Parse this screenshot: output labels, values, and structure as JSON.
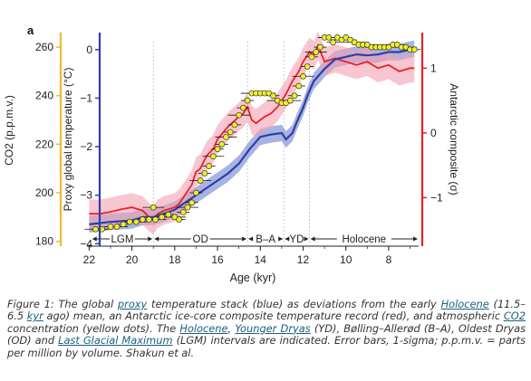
{
  "chart_data": {
    "type": "line",
    "panel_label": "a",
    "xlabel": "Age (kyr)",
    "x_ticks": [
      22,
      20,
      18,
      16,
      14,
      12,
      10,
      8
    ],
    "xlim": [
      22.1,
      6.6
    ],
    "left_axis_co2": {
      "label": "CO2 (p.p.m.v.)",
      "ticks": [
        260,
        240,
        220,
        200,
        180
      ],
      "ylim": [
        178,
        266
      ],
      "color": "#f0b830"
    },
    "left_axis_temp": {
      "label": "Proxy global temperature (°C)",
      "ticks": [
        0,
        -1,
        -2,
        -3,
        -4
      ],
      "ylim": [
        -4.05,
        0.35
      ],
      "color": "#2c3fa8"
    },
    "right_axis": {
      "label": "Antarctic composite (σ)",
      "ticks": [
        1,
        0,
        -1
      ],
      "ylim": [
        -1.75,
        1.55
      ],
      "color": "#e8202a"
    },
    "intervals": [
      {
        "label": "LGM",
        "start": 21.9,
        "end": 19.0
      },
      {
        "label": "OD",
        "start": 19.0,
        "end": 14.6
      },
      {
        "label": "B–A",
        "start": 14.6,
        "end": 12.9
      },
      {
        "label": "YD",
        "start": 12.9,
        "end": 11.7
      },
      {
        "label": "Holocene",
        "start": 11.7,
        "end": 6.6
      }
    ],
    "series": [
      {
        "color": "#2c3fa8",
        "band": 0.17,
        "x": [
          22,
          21,
          20,
          19.5,
          19,
          18.5,
          18,
          17.5,
          17,
          16.5,
          16,
          15.5,
          15,
          14.5,
          14,
          13.5,
          13,
          12.8,
          12.5,
          12.3,
          12,
          11.8,
          11.5,
          11,
          10.5,
          10,
          9.5,
          9,
          8.5,
          8,
          7.5,
          7,
          6.8
        ],
        "values": [
          -3.6,
          -3.55,
          -3.52,
          -3.45,
          -3.45,
          -3.38,
          -3.3,
          -3.15,
          -3.0,
          -2.85,
          -2.7,
          -2.55,
          -2.35,
          -2.05,
          -1.8,
          -1.75,
          -1.72,
          -1.85,
          -1.72,
          -1.5,
          -1.2,
          -0.95,
          -0.65,
          -0.4,
          -0.2,
          -0.15,
          -0.1,
          -0.12,
          -0.1,
          -0.05,
          -0.05,
          0.0,
          0.02
        ]
      },
      {
        "color": "#e8202a",
        "band": 0.22,
        "x": [
          22,
          21.5,
          21,
          20.5,
          20,
          19.5,
          19.2,
          19,
          18.8,
          18.5,
          18,
          17.8,
          17.5,
          17.2,
          17,
          16.8,
          16.5,
          16.2,
          16,
          15.5,
          15,
          14.8,
          14.6,
          14.4,
          14.2,
          14,
          13.8,
          13.5,
          13.2,
          13,
          12.8,
          12.5,
          12.2,
          12,
          11.8,
          11.7,
          11.5,
          11.3,
          11,
          10.5,
          10,
          9.5,
          9,
          8.5,
          8,
          7.5,
          7,
          6.8
        ],
        "values": [
          -1.25,
          -1.25,
          -1.22,
          -1.18,
          -1.15,
          -1.2,
          -1.3,
          -1.35,
          -1.25,
          -1.2,
          -1.15,
          -1.1,
          -0.95,
          -0.8,
          -0.6,
          -0.55,
          -0.35,
          -0.25,
          -0.1,
          0.1,
          0.25,
          0.3,
          0.4,
          0.2,
          0.15,
          0.2,
          0.25,
          0.3,
          0.4,
          0.5,
          0.6,
          0.8,
          0.95,
          1.1,
          1.2,
          1.25,
          1.2,
          1.35,
          1.1,
          1.15,
          1.1,
          1.05,
          1.1,
          1.0,
          1.05,
          0.95,
          1.0,
          1.0
        ]
      },
      {
        "color": "#f0f020",
        "x": [
          21.7,
          21.4,
          21.0,
          20.7,
          20.4,
          20.1,
          19.8,
          19.5,
          19.2,
          18.9,
          18.6,
          18.3,
          18.0,
          17.8,
          17.6,
          17.4,
          17.2,
          17.0,
          16.8,
          16.6,
          16.4,
          16.2,
          16.0,
          15.8,
          15.6,
          15.4,
          15.2,
          15.0,
          14.8,
          14.6,
          14.4,
          14.2,
          14.0,
          13.8,
          13.6,
          13.4,
          13.2,
          13.0,
          12.8,
          12.6,
          12.4,
          12.2,
          12.0,
          11.8,
          11.6,
          11.4,
          11.2,
          11.0,
          10.8,
          10.6,
          10.4,
          10.2,
          10.0,
          9.8,
          9.6,
          9.4,
          9.2,
          9.0,
          8.8,
          8.6,
          8.4,
          8.2,
          8.0,
          7.8,
          7.6,
          7.4,
          7.2,
          7.0,
          6.8,
          19.0
        ],
        "values": [
          185,
          185,
          186,
          186,
          187,
          188,
          188,
          189,
          189,
          189,
          190,
          191,
          190,
          189,
          192,
          194,
          196,
          200,
          205,
          208,
          211,
          215,
          218,
          220,
          223,
          225,
          228,
          232,
          235,
          238,
          241,
          241,
          241,
          241,
          241,
          240,
          238,
          237,
          237,
          238,
          240,
          244,
          248,
          252,
          256,
          258,
          260,
          264,
          264,
          262,
          264,
          263,
          264,
          263,
          262,
          261,
          261,
          261,
          260,
          260,
          260,
          260,
          260,
          261,
          261,
          260,
          260,
          259,
          259,
          194
        ]
      }
    ]
  },
  "caption": {
    "fig": "Figure 1: The global ",
    "proxy": "proxy",
    "p1": " temperature stack (blue) as deviations from the early ",
    "holocene1": "Holocene",
    "p2": " (11.5–6.5 ",
    "kyr": "kyr",
    "p3": " ago) mean, an Antarctic ice-core composite temperature record (red), and atmospheric ",
    "co2": "CO2",
    "p4": " concentration (yellow dots). The ",
    "holocene2": "Holocene",
    "p5": ", ",
    "yd": "Younger Dryas",
    "p6": " (YD), Bølling–Allerød (B–A), Oldest Dryas (OD) and ",
    "lgm": "Last Glacial Maximum",
    "p7": " (LGM) intervals are indicated. Error bars, 1-sigma; p.p.m.v. = parts per million by volume.  Shakun et al."
  }
}
